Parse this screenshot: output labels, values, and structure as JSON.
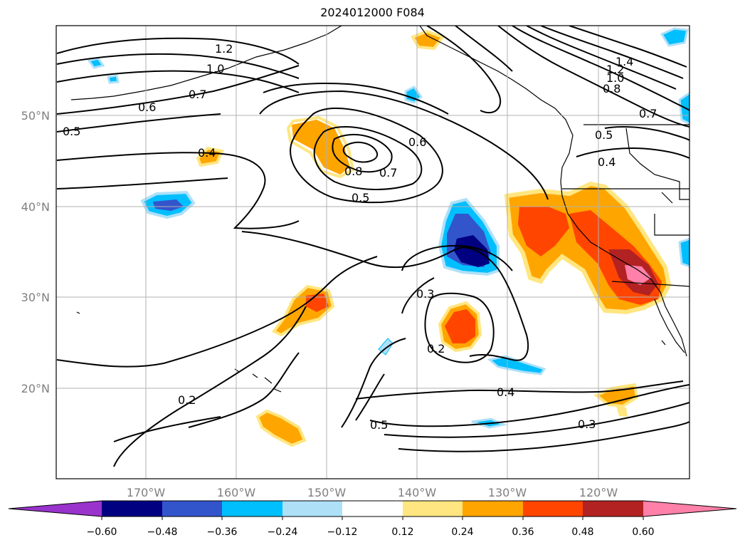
{
  "title": "2024012000 F084",
  "map": {
    "lon_labels": [
      "170°W",
      "160°W",
      "150°W",
      "140°W",
      "130°W",
      "120°W"
    ],
    "lat_labels": [
      "50°N",
      "40°N",
      "30°N",
      "20°N"
    ],
    "contour_labels": [
      "1.2",
      "1.0",
      "0.7",
      "0.6",
      "0.5",
      "0.4",
      "0.8",
      "0.7",
      "0.6",
      "0.5",
      "0.3",
      "0.2",
      "0.2",
      "0.4",
      "0.5",
      "0.3",
      "1.4",
      "1.2",
      "1.0",
      "0.8",
      "0.7",
      "0.5",
      "0.4"
    ]
  },
  "colorbar": {
    "ticks": [
      "−0.60",
      "−0.48",
      "−0.36",
      "−0.24",
      "−0.12",
      "0.12",
      "0.24",
      "0.36",
      "0.48",
      "0.60"
    ],
    "colors": [
      "#9933cc",
      "#000080",
      "#3355cc",
      "#00bfff",
      "#aee0f8",
      "#ffffff",
      "#ffe680",
      "#ffa500",
      "#ff4500",
      "#b22222",
      "#ff80a8"
    ]
  },
  "colors": {
    "ocean": "#ffffff",
    "contour": "#000000",
    "grid": "#b0b0b0",
    "tick_label": "#7f7f7f"
  }
}
